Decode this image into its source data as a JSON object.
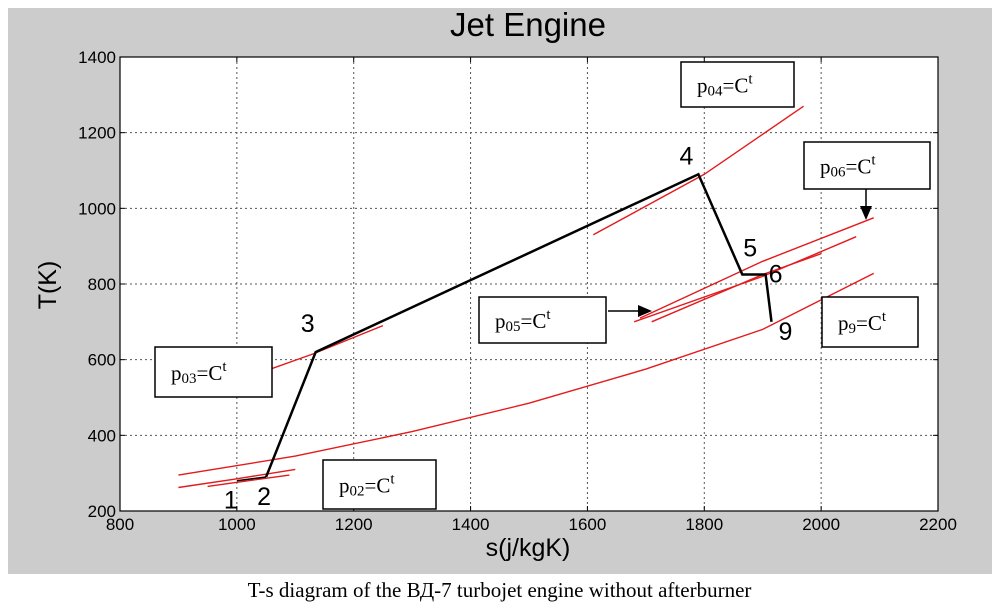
{
  "chart_data": {
    "type": "line",
    "title": "Jet Engine",
    "xlabel": "s(j/kgK)",
    "ylabel": "T(K)",
    "xlim": [
      800,
      2200
    ],
    "ylim": [
      200,
      1400
    ],
    "xticks": [
      800,
      1000,
      1200,
      1400,
      1600,
      1800,
      2000,
      2200
    ],
    "yticks": [
      200,
      400,
      600,
      800,
      1000,
      1200,
      1400
    ],
    "grid": true,
    "colors": {
      "cycle": "#000000",
      "isobar": "#e41a1c",
      "frame": "#cccccc",
      "plot_bg": "#ffffff"
    },
    "cycle": {
      "points": [
        {
          "label": "1",
          "s": 1000,
          "T": 280
        },
        {
          "label": "2",
          "s": 1050,
          "T": 290
        },
        {
          "label": "3",
          "s": 1135,
          "T": 620
        },
        {
          "label": "4",
          "s": 1790,
          "T": 1090
        },
        {
          "label": "5",
          "s": 1865,
          "T": 825
        },
        {
          "label": "6",
          "s": 1905,
          "T": 825
        },
        {
          "label": "9",
          "s": 1915,
          "T": 700
        }
      ]
    },
    "isobars": [
      {
        "name": "p9",
        "points": [
          [
            900,
            295
          ],
          [
            1100,
            345
          ],
          [
            1300,
            410
          ],
          [
            1500,
            485
          ],
          [
            1700,
            575
          ],
          [
            1900,
            680
          ],
          [
            2090,
            828
          ]
        ]
      },
      {
        "name": "p02",
        "points": [
          [
            900,
            262
          ],
          [
            1000,
            285
          ],
          [
            1100,
            310
          ]
        ]
      },
      {
        "name": "p01",
        "points": [
          [
            950,
            265
          ],
          [
            1020,
            280
          ],
          [
            1090,
            295
          ]
        ]
      },
      {
        "name": "p03",
        "points": [
          [
            1030,
            560
          ],
          [
            1130,
            615
          ],
          [
            1250,
            690
          ]
        ]
      },
      {
        "name": "p04",
        "points": [
          [
            1610,
            930
          ],
          [
            1800,
            1090
          ],
          [
            1970,
            1270
          ]
        ]
      },
      {
        "name": "p05a",
        "points": [
          [
            1680,
            700
          ],
          [
            1900,
            820
          ],
          [
            2060,
            925
          ]
        ]
      },
      {
        "name": "p05b",
        "points": [
          [
            1710,
            700
          ],
          [
            1900,
            825
          ],
          [
            2000,
            880
          ]
        ]
      },
      {
        "name": "p06",
        "points": [
          [
            1690,
            710
          ],
          [
            1900,
            860
          ],
          [
            2090,
            975
          ]
        ]
      }
    ],
    "annotations": [
      {
        "key": "p04",
        "base": "p",
        "sub": "04",
        "rest": "=C",
        "sup": "t"
      },
      {
        "key": "p06",
        "base": "p",
        "sub": "06",
        "rest": "=C",
        "sup": "t"
      },
      {
        "key": "p05",
        "base": "p",
        "sub": "05",
        "rest": "=C",
        "sup": "t"
      },
      {
        "key": "p9",
        "base": "p",
        "sub": "9",
        "rest": "=C",
        "sup": "t"
      },
      {
        "key": "p03",
        "base": "p",
        "sub": "03",
        "rest": "=C",
        "sup": "t"
      },
      {
        "key": "p02",
        "base": "p",
        "sub": "02",
        "rest": "=C",
        "sup": "t"
      }
    ]
  },
  "caption": "T-s diagram of the ВД-7 turbojet engine without afterburner"
}
